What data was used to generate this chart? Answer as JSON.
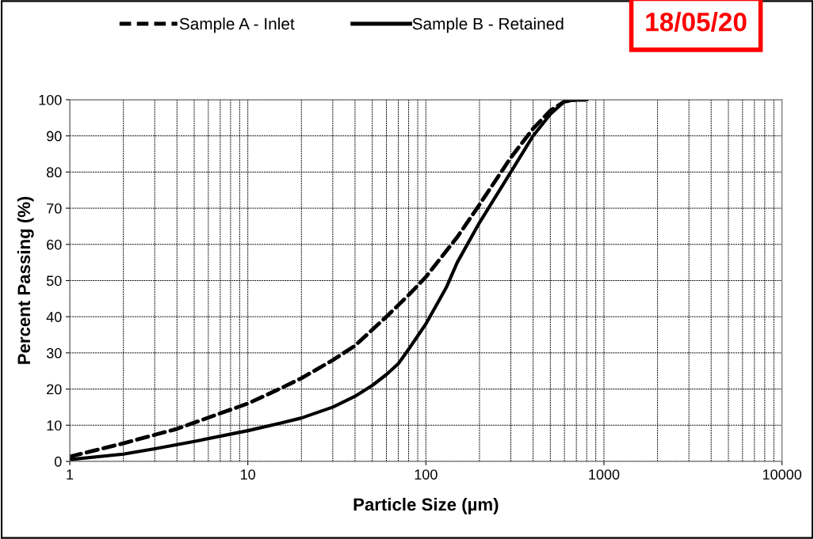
{
  "chart_data": {
    "type": "line",
    "xlabel": "Particle Size (µm)",
    "ylabel": "Percent Passing (%)",
    "log": "x",
    "xlim": [
      1,
      10000
    ],
    "xticks": [
      1,
      10,
      100,
      1000,
      10000
    ],
    "ylim": [
      0,
      100
    ],
    "yticks": [
      0,
      10,
      20,
      30,
      40,
      50,
      60,
      70,
      80,
      90,
      100
    ],
    "grid": true,
    "legend": "top",
    "marker": "none",
    "annotations": [
      "18/05/20"
    ],
    "series": [
      {
        "name": "Sample A - Inlet",
        "color": "#000000",
        "line_style": "dashed",
        "x": [
          1,
          2,
          4,
          10,
          15,
          20,
          30,
          40,
          60,
          80,
          100,
          150,
          200,
          300,
          400,
          500,
          600,
          700,
          800
        ],
        "values": [
          1.3,
          5,
          9,
          16,
          20,
          23,
          28,
          32,
          40,
          46,
          51,
          62,
          71,
          84,
          92,
          97,
          99.5,
          100,
          100
        ]
      },
      {
        "name": "Sample B - Retained",
        "color": "#000000",
        "line_style": "solid",
        "x": [
          1,
          2,
          3,
          5,
          10,
          15,
          20,
          30,
          40,
          50,
          60,
          70,
          80,
          100,
          130,
          150,
          200,
          300,
          400,
          500,
          600,
          700,
          800
        ],
        "values": [
          0.5,
          2,
          3.5,
          5.5,
          8.5,
          10.5,
          12,
          15,
          18,
          21,
          24,
          27,
          31,
          38,
          48,
          55,
          66,
          80,
          90,
          96,
          99.5,
          100,
          100
        ]
      }
    ]
  }
}
